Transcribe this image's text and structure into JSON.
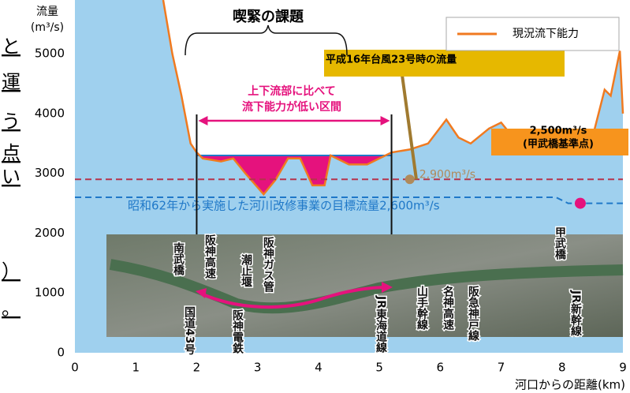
{
  "chart_data": {
    "type": "line",
    "title": "喫緊の課題",
    "y_label": [
      "流量",
      "(m³/s)"
    ],
    "x_label": "河口からの距離(km)",
    "xlim": [
      0,
      9
    ],
    "ylim": [
      0,
      5900
    ],
    "xticks": [
      0,
      1,
      2,
      3,
      4,
      5,
      6,
      7,
      8,
      9
    ],
    "yticks": [
      0,
      1000,
      2000,
      3000,
      4000,
      5000
    ],
    "x": [
      1.45,
      1.6,
      1.75,
      1.9,
      2.0,
      2.1,
      2.4,
      2.6,
      2.8,
      3.1,
      3.3,
      3.5,
      3.7,
      3.9,
      4.1,
      4.2,
      4.5,
      4.8,
      5.0,
      5.2,
      5.5,
      5.8,
      6.1,
      6.3,
      6.5,
      6.8,
      7.0,
      7.2,
      7.5,
      7.8,
      8.0,
      8.2,
      8.5,
      8.7,
      8.8,
      8.95,
      9.0
    ],
    "series": [
      {
        "name": "現況流下能力",
        "color": "#f07a20",
        "values": [
          5900,
          5000,
          4300,
          3500,
          3350,
          3250,
          3200,
          3250,
          3000,
          2650,
          2900,
          3250,
          3250,
          2800,
          2800,
          3300,
          3150,
          3150,
          3250,
          3350,
          3400,
          3500,
          3900,
          3600,
          3500,
          3750,
          3850,
          3600,
          3700,
          3500,
          3450,
          3700,
          3600,
          4400,
          4300,
          5050,
          4000
        ]
      }
    ],
    "area_color": "#9fd0ee",
    "low_section": {
      "x": [
        2,
        5.2
      ],
      "level": 3300,
      "color": "#e5127d",
      "label": [
        "上下流部に比べて",
        "流下能力が低い区間"
      ]
    },
    "flood_line": {
      "value": 2900,
      "color": "#b5344c",
      "label": "2,900m³/s",
      "note": "平成16年台風23号時の流量",
      "marker_x": 5.5,
      "marker_color": "#b08a5a"
    },
    "target_line": {
      "x": [
        0,
        7.9,
        8.1,
        9
      ],
      "values": [
        2600,
        2600,
        2500,
        2500
      ],
      "color": "#1f78c8",
      "label": "昭和62年から実施した河川改修事業の目標流量2,600m³/s"
    },
    "reference_point": {
      "x": 8.3,
      "value": 2500,
      "color": "#e5127d",
      "label": [
        "2,500m³/s",
        "(甲武橋基準点)"
      ]
    },
    "photo_labels": [
      "南武橋",
      "阪神高速",
      "潮止堰",
      "阪神ガス管",
      "国道43号",
      "阪神電鉄",
      "JR東海道線",
      "山手幹線",
      "名神高速",
      "阪急神戸線",
      "甲武橋",
      "JR新幹線"
    ],
    "side_text": [
      "と",
      "運",
      "う",
      "点",
      "い",
      "）",
      "。"
    ],
    "legend": "upper right",
    "grid": false
  }
}
